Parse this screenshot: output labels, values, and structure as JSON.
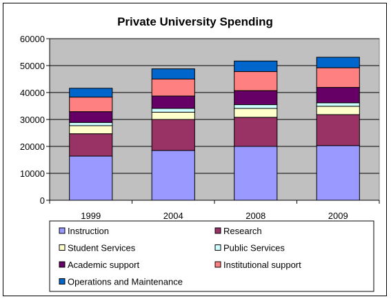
{
  "chart_data": {
    "type": "bar",
    "stacked": true,
    "title": "Private University Spending",
    "xlabel": "",
    "ylabel": "",
    "categories": [
      "1999",
      "2004",
      "2008",
      "2009"
    ],
    "ylim": [
      0,
      60000
    ],
    "yticks": [
      0,
      10000,
      20000,
      30000,
      40000,
      50000,
      60000
    ],
    "grid": true,
    "legend": "bottom",
    "plot_background": "#c0c0c0",
    "series": [
      {
        "name": "Instruction",
        "color": "#9999ff",
        "values": [
          16400,
          18500,
          20000,
          20300
        ]
      },
      {
        "name": "Research",
        "color": "#993366",
        "values": [
          8300,
          11500,
          10800,
          11500
        ]
      },
      {
        "name": "Student Services",
        "color": "#ffffcc",
        "values": [
          3000,
          2700,
          3300,
          3100
        ]
      },
      {
        "name": "Public Services",
        "color": "#ccffff",
        "values": [
          1200,
          1400,
          1400,
          1300
        ]
      },
      {
        "name": "Academic support",
        "color": "#660066",
        "values": [
          4000,
          4600,
          5200,
          5700
        ]
      },
      {
        "name": "Institutional support",
        "color": "#ff8080",
        "values": [
          5400,
          6300,
          7100,
          7300
        ]
      },
      {
        "name": "Operations and Maintenance",
        "color": "#0066cc",
        "values": [
          3300,
          3800,
          3900,
          3900
        ]
      }
    ]
  }
}
